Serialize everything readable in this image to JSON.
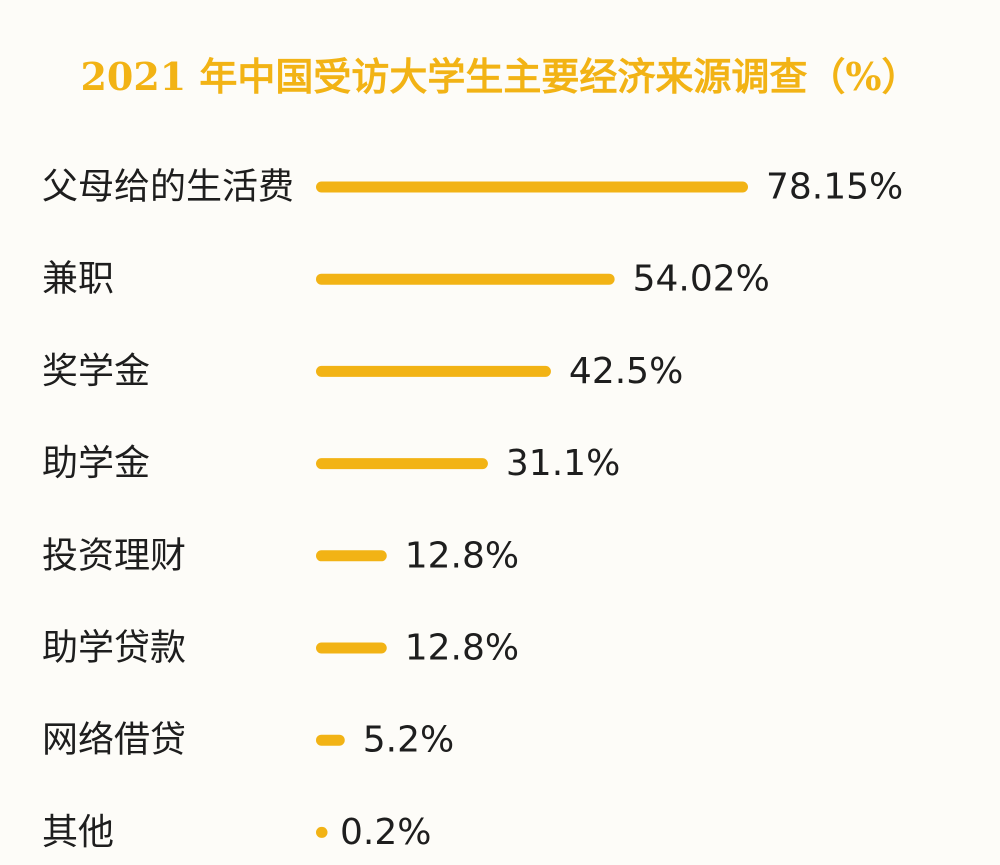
{
  "colors": {
    "bar": "#f2b315",
    "title": "#f2b315",
    "text": "#1e1e1e",
    "background": "#fdfcf8"
  },
  "chart_data": {
    "type": "bar",
    "orientation": "horizontal",
    "title": "2021 年中国受访大学生主要经济来源调查（%）",
    "xlabel": "",
    "ylabel": "",
    "grid": false,
    "legend": "none",
    "xlim": [
      0,
      78.15
    ],
    "categories": [
      "父母给的生活费",
      "兼职",
      "奖学金",
      "助学金",
      "投资理财",
      "助学贷款",
      "网络借贷",
      "其他"
    ],
    "values": [
      78.15,
      54.02,
      42.5,
      31.1,
      12.8,
      12.8,
      5.2,
      0.2
    ],
    "value_labels": [
      "78.15%",
      "54.02%",
      "42.5%",
      "31.1%",
      "12.8%",
      "12.8%",
      "5.2%",
      "0.2%"
    ]
  }
}
